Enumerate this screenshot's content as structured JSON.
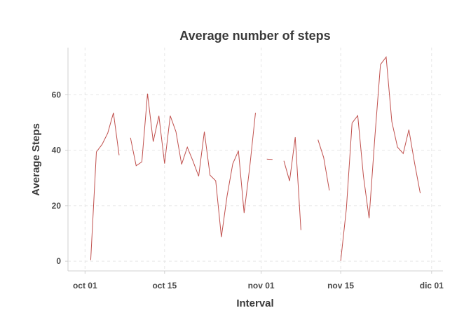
{
  "chart_data": {
    "type": "line",
    "title": "Average number of steps",
    "xlabel": "Interval",
    "ylabel": "Average Steps",
    "xlim": [
      "2012-09-28",
      "2012-12-03"
    ],
    "ylim": [
      -3.5,
      77
    ],
    "grid": true,
    "legend": "none",
    "x_ticks": [
      {
        "date": "2012-10-01",
        "label": "oct 01"
      },
      {
        "date": "2012-10-15",
        "label": "oct 15"
      },
      {
        "date": "2012-11-01",
        "label": "nov 01"
      },
      {
        "date": "2012-11-15",
        "label": "nov 15"
      },
      {
        "date": "2012-12-01",
        "label": "dic 01"
      }
    ],
    "y_ticks": [
      0,
      20,
      40,
      60
    ],
    "series": [
      {
        "color": "#c0504d",
        "points": [
          [
            "2012-10-02",
            0.4
          ],
          [
            "2012-10-03",
            39.4
          ],
          [
            "2012-10-04",
            42.1
          ],
          [
            "2012-10-05",
            46.2
          ],
          [
            "2012-10-06",
            53.5
          ],
          [
            "2012-10-07",
            38.2
          ],
          [
            "2012-10-08",
            null
          ],
          [
            "2012-10-09",
            44.5
          ],
          [
            "2012-10-10",
            34.4
          ],
          [
            "2012-10-11",
            35.8
          ],
          [
            "2012-10-12",
            60.4
          ],
          [
            "2012-10-13",
            43.1
          ],
          [
            "2012-10-14",
            52.4
          ],
          [
            "2012-10-15",
            35.2
          ],
          [
            "2012-10-16",
            52.4
          ],
          [
            "2012-10-17",
            46.7
          ],
          [
            "2012-10-18",
            34.9
          ],
          [
            "2012-10-19",
            41.1
          ],
          [
            "2012-10-20",
            36.1
          ],
          [
            "2012-10-21",
            30.6
          ],
          [
            "2012-10-22",
            46.7
          ],
          [
            "2012-10-23",
            31.0
          ],
          [
            "2012-10-24",
            29.0
          ],
          [
            "2012-10-25",
            8.7
          ],
          [
            "2012-10-26",
            23.5
          ],
          [
            "2012-10-27",
            35.1
          ],
          [
            "2012-10-28",
            39.8
          ],
          [
            "2012-10-29",
            17.4
          ],
          [
            "2012-10-30",
            34.1
          ],
          [
            "2012-10-31",
            53.5
          ],
          [
            "2012-11-01",
            null
          ],
          [
            "2012-11-02",
            36.8
          ],
          [
            "2012-11-03",
            36.7
          ],
          [
            "2012-11-04",
            null
          ],
          [
            "2012-11-05",
            36.2
          ],
          [
            "2012-11-06",
            28.9
          ],
          [
            "2012-11-07",
            44.7
          ],
          [
            "2012-11-08",
            11.2
          ],
          [
            "2012-11-09",
            null
          ],
          [
            "2012-11-10",
            null
          ],
          [
            "2012-11-11",
            43.8
          ],
          [
            "2012-11-12",
            37.4
          ],
          [
            "2012-11-13",
            25.5
          ],
          [
            "2012-11-14",
            null
          ],
          [
            "2012-11-15",
            0.1
          ],
          [
            "2012-11-16",
            18.9
          ],
          [
            "2012-11-17",
            49.8
          ],
          [
            "2012-11-18",
            52.5
          ],
          [
            "2012-11-19",
            30.7
          ],
          [
            "2012-11-20",
            15.5
          ],
          [
            "2012-11-21",
            44.4
          ],
          [
            "2012-11-22",
            70.9
          ],
          [
            "2012-11-23",
            73.6
          ],
          [
            "2012-11-24",
            50.3
          ],
          [
            "2012-11-25",
            41.1
          ],
          [
            "2012-11-26",
            38.8
          ],
          [
            "2012-11-27",
            47.4
          ],
          [
            "2012-11-28",
            35.4
          ],
          [
            "2012-11-29",
            24.5
          ]
        ]
      }
    ]
  }
}
